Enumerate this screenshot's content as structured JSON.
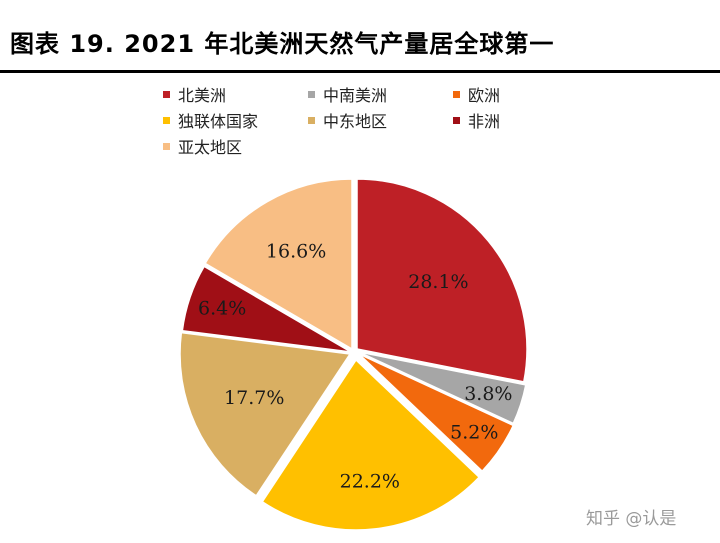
{
  "title": "图表 19. 2021 年北美洲天然气产量居全球第一",
  "watermark": "知乎 @认是",
  "chart_data": {
    "type": "pie",
    "title": "",
    "unit": "%",
    "legend_position": "top",
    "slices": [
      {
        "name": "北美洲",
        "value": 28.1,
        "label": "28.1%",
        "color": "#BE2026"
      },
      {
        "name": "中南美洲",
        "value": 3.8,
        "label": "3.8%",
        "color": "#A6A6A6"
      },
      {
        "name": "欧洲",
        "value": 5.2,
        "label": "5.2%",
        "color": "#F2690D"
      },
      {
        "name": "独联体国家",
        "value": 22.2,
        "label": "22.2%",
        "color": "#FFC000"
      },
      {
        "name": "中东地区",
        "value": 17.7,
        "label": "17.7%",
        "color": "#D9AF62"
      },
      {
        "name": "非洲",
        "value": 6.4,
        "label": "6.4%",
        "color": "#A00F16"
      },
      {
        "name": "亚太地区",
        "value": 16.6,
        "label": "16.6%",
        "color": "#F8BE84"
      }
    ]
  }
}
